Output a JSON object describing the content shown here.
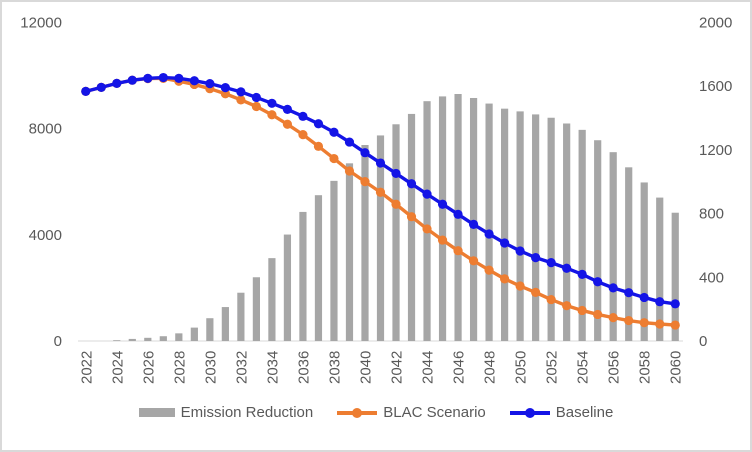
{
  "ui": {
    "frame_border_color": "#d9d9d9",
    "background": "#ffffff",
    "axis_text_color": "#595959",
    "axis_line_color": "#d9d9d9"
  },
  "chart_data": {
    "type": "bar",
    "subtype": "combo-bar-line",
    "title": "",
    "grid": false,
    "legend_position": "bottom",
    "x": [
      2022,
      2023,
      2024,
      2025,
      2026,
      2027,
      2028,
      2029,
      2030,
      2031,
      2032,
      2033,
      2034,
      2035,
      2036,
      2037,
      2038,
      2039,
      2040,
      2041,
      2042,
      2043,
      2044,
      2045,
      2046,
      2047,
      2048,
      2049,
      2050,
      2051,
      2052,
      2053,
      2054,
      2055,
      2056,
      2057,
      2058,
      2059,
      2060
    ],
    "x_tick_labels": [
      "2022",
      "2024",
      "2026",
      "2028",
      "2030",
      "2032",
      "2034",
      "2036",
      "2038",
      "2040",
      "2042",
      "2044",
      "2046",
      "2048",
      "2050",
      "2052",
      "2054",
      "2056",
      "2058",
      "2060"
    ],
    "left_axis": {
      "min": 0,
      "max": 12000,
      "ticks": [
        0,
        4000,
        8000,
        12000
      ]
    },
    "right_axis": {
      "min": 0,
      "max": 2000,
      "ticks": [
        0,
        400,
        800,
        1200,
        1600,
        2000
      ]
    },
    "series": [
      {
        "name": "Emission Reduction",
        "type": "bar",
        "axis": "right",
        "color": "#A6A6A6",
        "values": [
          0,
          0,
          5,
          13,
          20,
          30,
          48,
          84,
          143,
          213,
          303,
          400,
          520,
          668,
          810,
          915,
          1005,
          1115,
          1230,
          1290,
          1360,
          1425,
          1505,
          1535,
          1550,
          1525,
          1490,
          1458,
          1441,
          1422,
          1401,
          1365,
          1325,
          1260,
          1185,
          1090,
          995,
          900,
          805
        ]
      },
      {
        "name": "BLAC Scenario",
        "type": "line",
        "axis": "left",
        "color": "#ED7D31",
        "values": [
          9400,
          9550,
          9700,
          9820,
          9880,
          9890,
          9780,
          9660,
          9500,
          9310,
          9080,
          8830,
          8520,
          8160,
          7770,
          7330,
          6870,
          6400,
          6000,
          5600,
          5150,
          4680,
          4220,
          3800,
          3400,
          3020,
          2670,
          2340,
          2070,
          1830,
          1560,
          1330,
          1150,
          1000,
          880,
          770,
          690,
          640,
          600
        ]
      },
      {
        "name": "Baseline",
        "type": "line",
        "axis": "left",
        "color": "#1414E6",
        "values": [
          9400,
          9550,
          9700,
          9820,
          9890,
          9920,
          9890,
          9800,
          9690,
          9540,
          9380,
          9170,
          8950,
          8720,
          8460,
          8180,
          7860,
          7490,
          7090,
          6700,
          6310,
          5920,
          5530,
          5150,
          4770,
          4390,
          4030,
          3690,
          3390,
          3140,
          2950,
          2740,
          2510,
          2230,
          2000,
          1820,
          1640,
          1480,
          1400
        ]
      }
    ]
  }
}
